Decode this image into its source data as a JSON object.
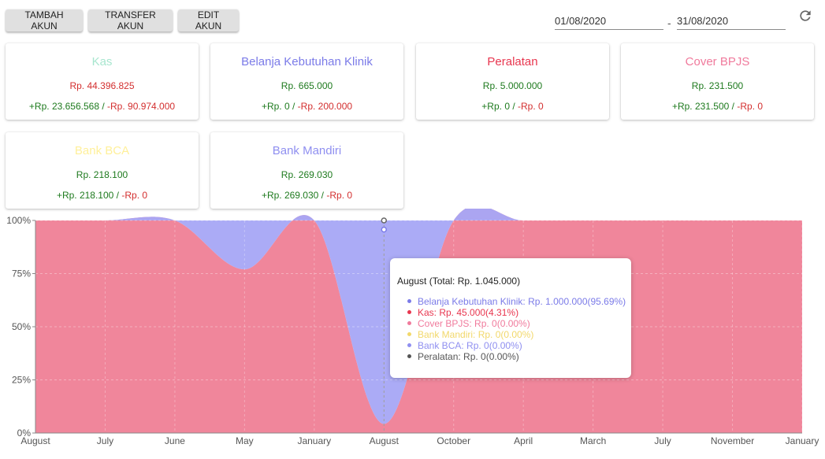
{
  "toolbar": {
    "add_label": "TAMBAH AKUN",
    "transfer_label": "TRANSFER AKUN",
    "edit_label": "EDIT AKUN",
    "date_from": "01/08/2020",
    "date_sep": "-",
    "date_to": "31/08/2020",
    "refresh_icon": "refresh-icon"
  },
  "cards": [
    {
      "title": "Kas",
      "color": "#a8e6cf",
      "total": "Rp. 44.396.825",
      "total_negative": true,
      "in": "+Rp. 23.656.568",
      "out": "-Rp. 90.974.000"
    },
    {
      "title": "Belanja Kebutuhan Klinik",
      "color": "#7b7be8",
      "total": "Rp. 665.000",
      "total_negative": false,
      "in": "+Rp. 0",
      "out": "-Rp. 200.000"
    },
    {
      "title": "Peralatan",
      "color": "#e8364f",
      "total": "Rp. 5.000.000",
      "total_negative": false,
      "in": "+Rp. 0",
      "out": "-Rp. 0"
    },
    {
      "title": "Cover BPJS",
      "color": "#f07a9c",
      "total": "Rp. 231.500",
      "total_negative": false,
      "in": "+Rp. 231.500",
      "out": "-Rp. 0"
    },
    {
      "title": "Bank BCA",
      "color": "#fff09a",
      "total": "Rp. 218.100",
      "total_negative": false,
      "in": "+Rp. 218.100",
      "out": "-Rp. 0"
    },
    {
      "title": "Bank Mandiri",
      "color": "#8f8ff0",
      "total": "Rp. 269.030",
      "total_negative": false,
      "in": "+Rp. 269.030",
      "out": "-Rp. 0"
    }
  ],
  "chart_data": {
    "type": "area",
    "stacked": "percent",
    "categories": [
      "August",
      "July",
      "June",
      "May",
      "January",
      "August",
      "October",
      "April",
      "March",
      "July",
      "November",
      "January"
    ],
    "y_ticks": [
      "0%",
      "25%",
      "50%",
      "75%",
      "100%"
    ],
    "ylim": [
      0,
      100
    ],
    "grid": true,
    "series": [
      {
        "name": "Kas",
        "color": "#e94d6b",
        "values": [
          100,
          100,
          100,
          77,
          100,
          4.31,
          100,
          100,
          100,
          100,
          100,
          100
        ]
      },
      {
        "name": "Belanja Kebutuhan Klinik",
        "color": "#a6a6f5",
        "values": [
          0,
          0,
          0,
          23,
          0,
          95.69,
          0,
          0,
          0,
          0,
          0,
          0
        ]
      },
      {
        "name": "Peralatan",
        "color": "#8d6e63",
        "values": [
          0,
          0,
          0,
          0,
          0,
          0,
          0,
          0,
          0,
          0,
          0,
          0
        ]
      }
    ],
    "tooltip": {
      "title": "August (Total: Rp. 1.045.000)",
      "items": [
        {
          "text": "Belanja Kebutuhan Klinik: Rp. 1.000.000(95.69%)",
          "color": "#7b7be8"
        },
        {
          "text": "Kas: Rp. 45.000(4.31%)",
          "color": "#e8364f"
        },
        {
          "text": "Cover BPJS: Rp. 0(0.00%)",
          "color": "#f07a9c"
        },
        {
          "text": "Bank Mandiri: Rp. 0(0.00%)",
          "color": "#f2d86a"
        },
        {
          "text": "Bank BCA: Rp. 0(0.00%)",
          "color": "#8f8ff0"
        },
        {
          "text": "Peralatan: Rp. 0(0.00%)",
          "color": "#555555"
        }
      ]
    }
  }
}
